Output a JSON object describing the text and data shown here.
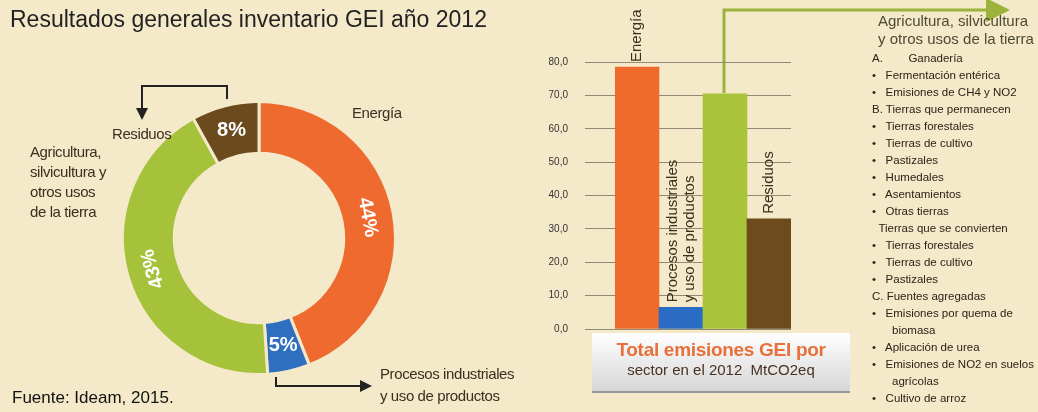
{
  "chart_data": [
    {
      "type": "donut",
      "title": "Resultados generales inventario GEI año 2012",
      "categories": [
        "Energía",
        "Procesos industriales y uso de productos",
        "Agricultura, silvicultura y otros usos de la tierra",
        "Residuos"
      ],
      "values": [
        44,
        5,
        43,
        8
      ],
      "colors": [
        "#ee6a2e",
        "#2f6fc0",
        "#a6c23a",
        "#6b4a1e"
      ],
      "value_labels": [
        "44%",
        "5%",
        "43%",
        "8%"
      ],
      "annotations": [
        "Fuente: Ideam, 2015."
      ]
    },
    {
      "type": "bar",
      "title": "Total emisiones GEI por",
      "subtitle": "sector en el 2012  MtCO2eq",
      "categories": [
        "Energía",
        "Procesos industriales y uso de productos",
        null,
        "Residuos"
      ],
      "values": [
        78.5,
        6.5,
        70.5,
        33
      ],
      "colors": [
        "#f06a2c",
        "#2a6cc4",
        "#a9c43a",
        "#6e4b1c"
      ],
      "ylim": [
        0,
        80
      ],
      "yticks": [
        {
          "value": 0,
          "label": "0,0"
        },
        {
          "value": 10,
          "label": "10,0"
        },
        {
          "value": 20,
          "label": "20,0"
        },
        {
          "value": 30,
          "label": "30,0"
        },
        {
          "value": 40,
          "label": "40,0"
        },
        {
          "value": 50,
          "label": "50,0"
        },
        {
          "value": 60,
          "label": "60,0"
        },
        {
          "value": 70,
          "label": "70,0"
        },
        {
          "value": 80,
          "label": "80,0"
        }
      ],
      "grid": "y"
    },
    {
      "type": "other",
      "title": "Agricultura, silvicultura y otros usos de la tierra",
      "annotations": [
        "A.        Ganadería",
        "•   Fermentación entérica",
        "•   Emisiones de CH4 y NO2",
        "B. Tierras que permanecen",
        "•   Tierras forestales",
        "•   Tierras de cultivo",
        "•   Pastizales",
        "•   Humedales",
        "•   Asentamientos",
        "•   Otras tierras",
        "  Tierras que se convierten",
        "•   Tierras forestales",
        "•   Tierras de cultivo",
        "•   Pastizales",
        "C. Fuentes agregadas",
        "•   Emisiones por quema de biomasa",
        "•   Aplicación de urea",
        "•   Emisiones de NO2 en suelos agrícolas",
        "•   Cultivo de arroz"
      ]
    }
  ]
}
